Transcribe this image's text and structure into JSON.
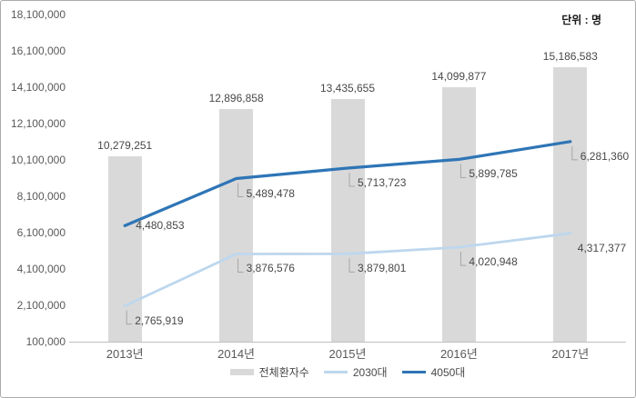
{
  "chart_data": {
    "type": "combo-bar-line",
    "unit_label": "단위 : 명",
    "categories": [
      "2013년",
      "2014년",
      "2015년",
      "2016년",
      "2017년"
    ],
    "series": [
      {
        "name": "전체환자수",
        "type": "bar",
        "axis": "primary",
        "color": "#d9d9d9",
        "values": [
          10279251,
          12896858,
          13435655,
          14099877,
          15186583
        ],
        "labels": [
          "10,279,251",
          "12,896,858",
          "13,435,655",
          "14,099,877",
          "15,186,583"
        ]
      },
      {
        "name": "2030대",
        "type": "line",
        "axis": "secondary",
        "color": "#bdd7ee",
        "values": [
          2765919,
          3876576,
          3879801,
          4020948,
          4317377
        ],
        "labels": [
          "2,765,919",
          "3,876,576",
          "3,879,801",
          "4,020,948",
          "4,317,377"
        ]
      },
      {
        "name": "4050대",
        "type": "line",
        "axis": "secondary",
        "color": "#2e75b6",
        "values": [
          4480853,
          5489478,
          5713723,
          5899785,
          6281360
        ],
        "labels": [
          "4,480,853",
          "5,489,478",
          "5,713,723",
          "5,899,785",
          "6,281,360"
        ]
      }
    ],
    "y_axis": {
      "min": 100000,
      "max": 18100000,
      "tick_labels": [
        "100,000",
        "2,100,000",
        "4,100,000",
        "6,100,000",
        "8,100,000",
        "10,100,000",
        "12,100,000",
        "14,100,000",
        "16,100,000",
        "18,100,000"
      ]
    },
    "secondary_axis_hidden_range": [
      2000000,
      9000000
    ],
    "grid": "off",
    "data_labels": true,
    "legend": {
      "position": "bottom",
      "entries": [
        "전체환자수",
        "2030대",
        "4050대"
      ]
    },
    "colors": {
      "bar_fill": "#d9d9d9",
      "line_light": "#bdd7ee",
      "line_dark": "#2e75b6",
      "axis_line": "#bfbfbf",
      "connector": "#a6a6a6",
      "tick_text": "#595959",
      "label_text": "#484848"
    }
  }
}
